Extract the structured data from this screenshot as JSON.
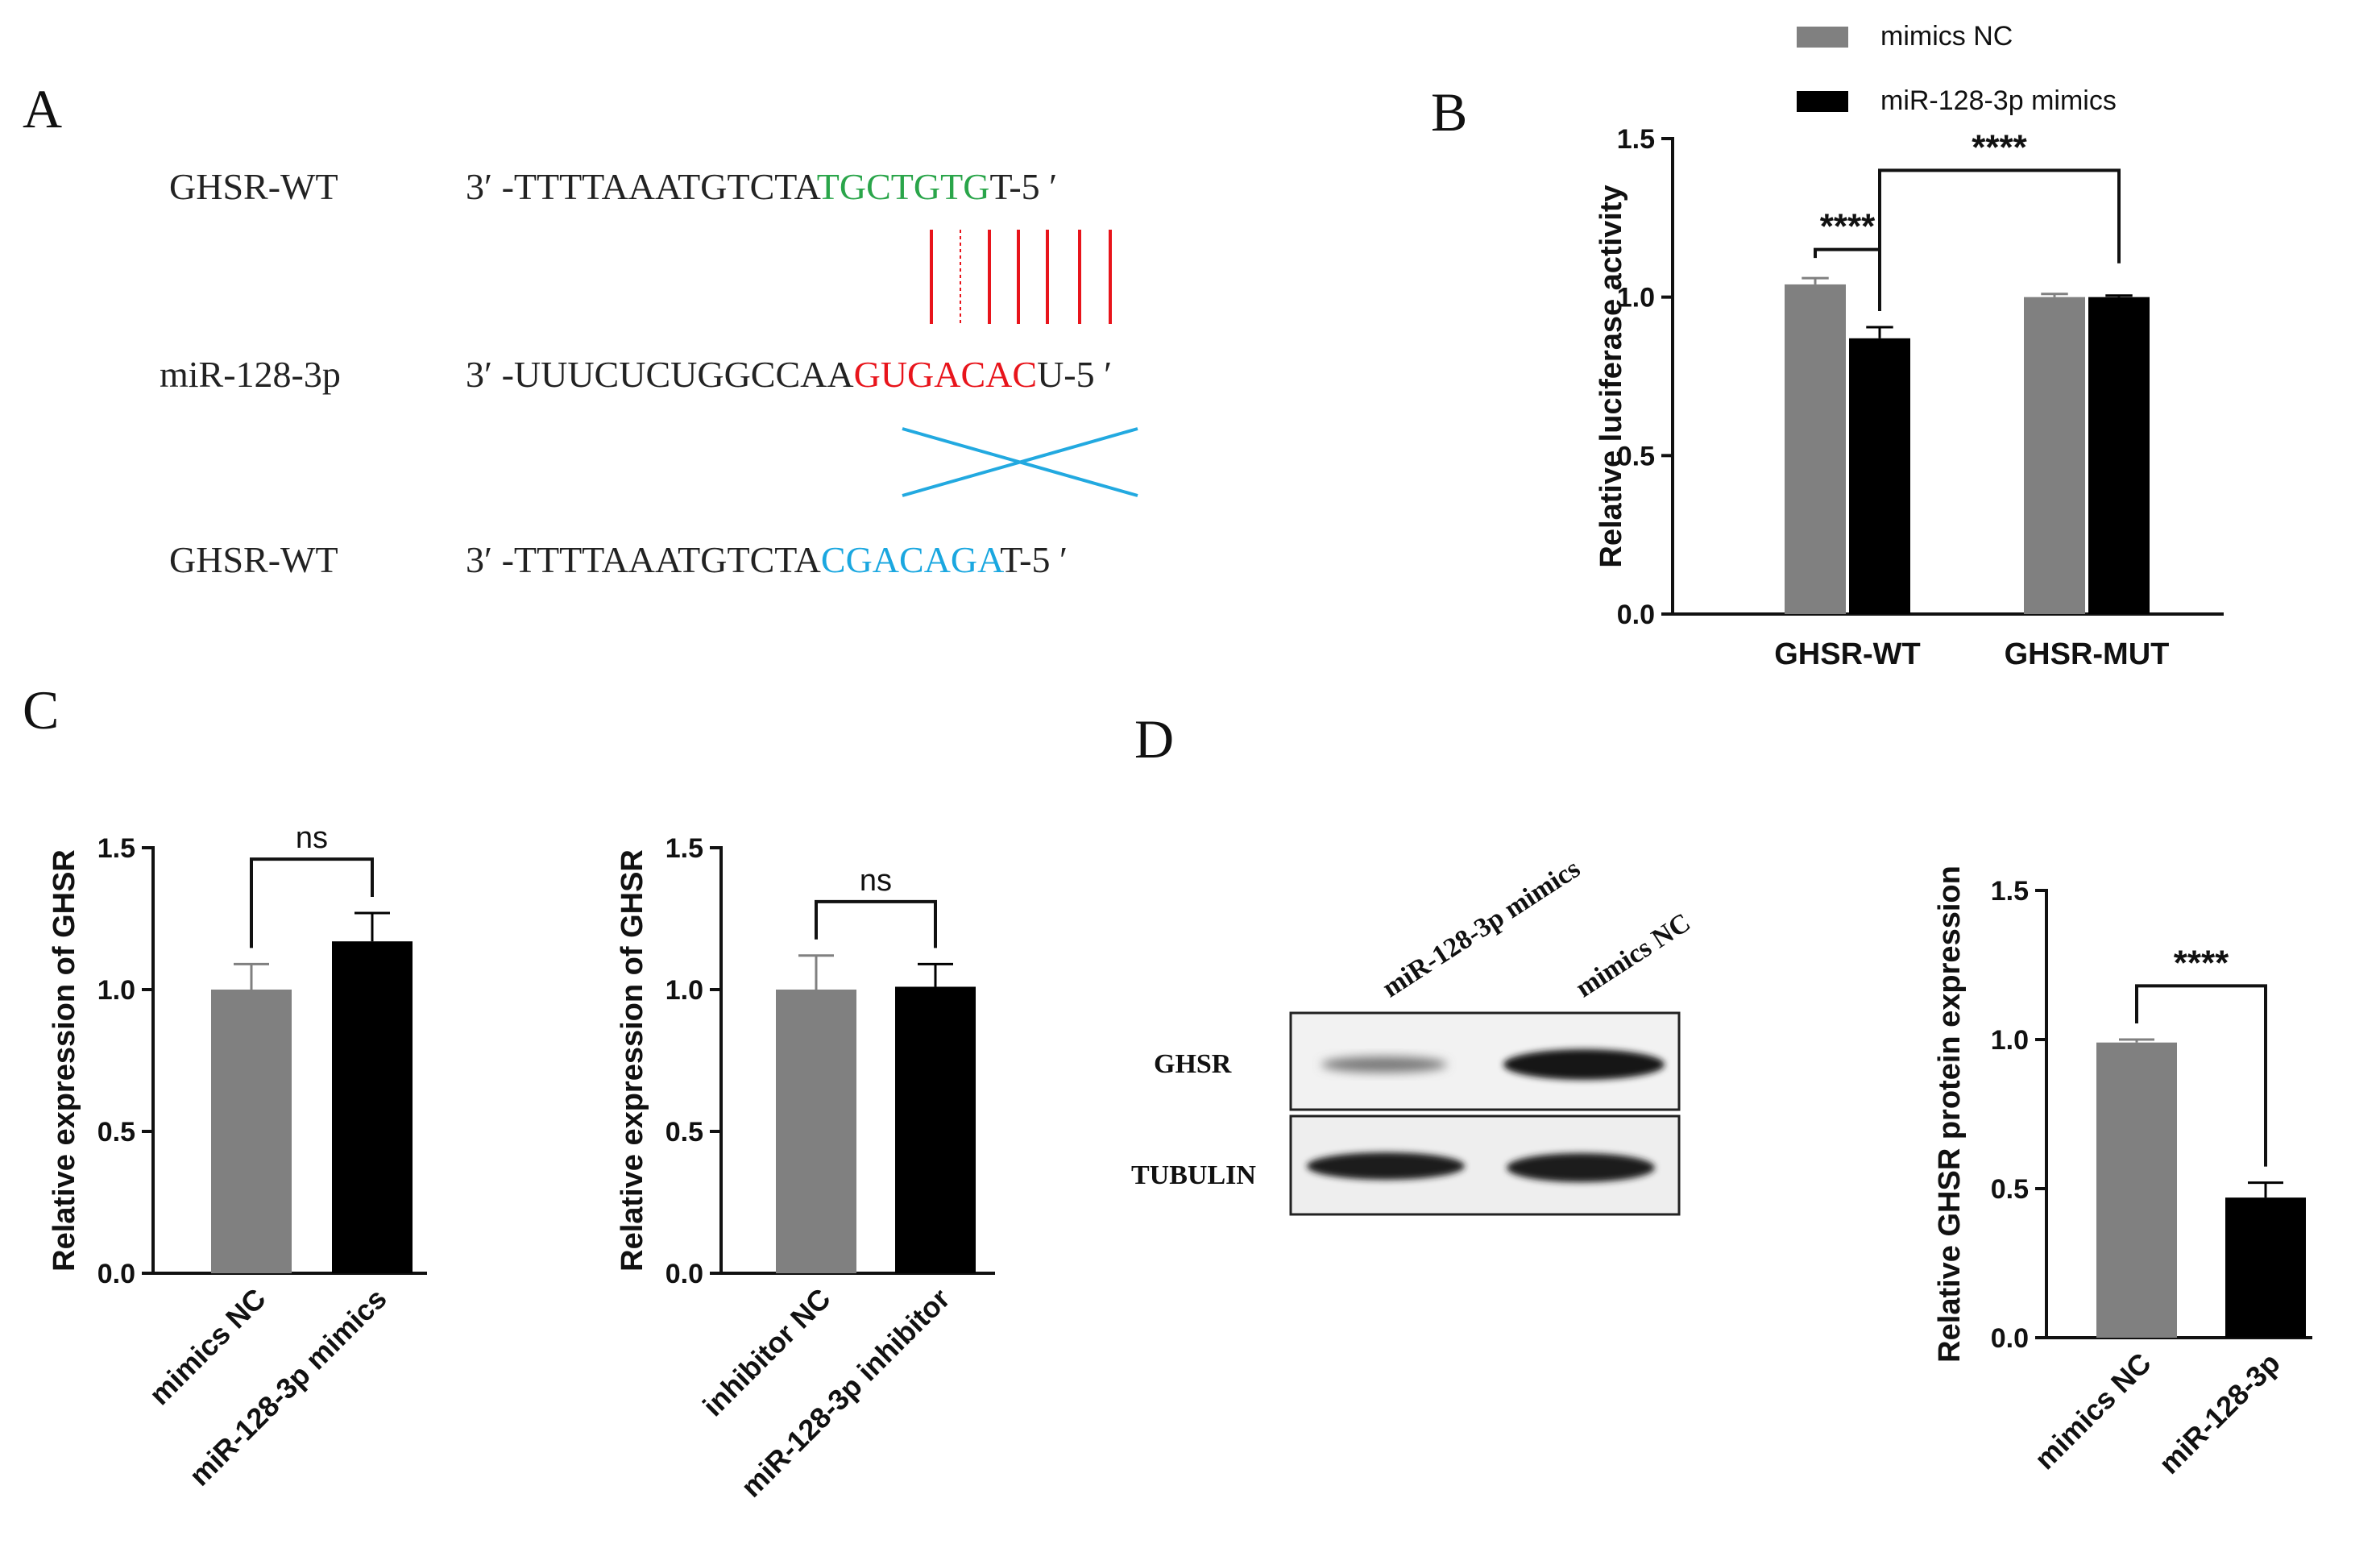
{
  "panels": {
    "a": "A",
    "b": "B",
    "c": "C",
    "d": "D"
  },
  "panelA": {
    "rows": [
      {
        "label": "GHSR-WT",
        "prefix": "3′ -TTTTAAATGTCTA",
        "highlight": "TGCTGTG",
        "suffix": "T-5 ′",
        "color": "#2aa54a"
      },
      {
        "label": "miR-128-3p",
        "prefix": "3′ -UUUCUCUGGCCAA",
        "highlight": "GUGACAC",
        "suffix": "U-5 ′",
        "color": "#e8141b"
      },
      {
        "label": "GHSR-WT",
        "prefix": "3′ -TTTTAAATGTCTA",
        "highlight": "CGACAGA",
        "suffix": "T-5 ′",
        "color": "#1aa7e0"
      }
    ],
    "pair_color": "#e8141b",
    "cross_color": "#22a9e0"
  },
  "legend": {
    "items": [
      {
        "label": "mimics NC",
        "color": "#808080"
      },
      {
        "label": "miR-128-3p mimics",
        "color": "#000000"
      }
    ]
  },
  "westernBlot": {
    "lanes": [
      "miR-128-3p mimics",
      "mimics NC"
    ],
    "rows": [
      "GHSR",
      "TUBULIN"
    ]
  },
  "chart_data": [
    {
      "id": "B",
      "type": "bar",
      "categories": [
        "GHSR-WT",
        "GHSR-MUT"
      ],
      "series": [
        {
          "name": "mimics NC",
          "color": "#808080",
          "values": [
            1.04,
            1.0
          ],
          "errors": [
            0.02,
            0.01
          ]
        },
        {
          "name": "miR-128-3p mimics",
          "color": "#000000",
          "values": [
            0.87,
            1.0
          ],
          "errors": [
            0.035,
            0.005
          ]
        }
      ],
      "xlabel": "",
      "ylabel": "Relative luciferase activity",
      "ylim": [
        0,
        1.5
      ],
      "yticks": [
        "0.0",
        "0.5",
        "1.0",
        "1.5"
      ],
      "significance": [
        {
          "from": [
            0,
            0
          ],
          "to": [
            0,
            1
          ],
          "label": "****"
        },
        {
          "from": [
            0,
            1
          ],
          "to": [
            1,
            1
          ],
          "label": "****"
        }
      ]
    },
    {
      "id": "C1",
      "type": "bar",
      "categories": [
        "mimics NC",
        "miR-128-3p mimics"
      ],
      "colors": [
        "#808080",
        "#000000"
      ],
      "values": [
        1.0,
        1.17
      ],
      "errors": [
        0.09,
        0.1
      ],
      "ylabel": "Relative expression of GHSR",
      "ylim": [
        0,
        1.5
      ],
      "yticks": [
        "0.0",
        "0.5",
        "1.0",
        "1.5"
      ],
      "significance": [
        {
          "from": 0,
          "to": 1,
          "label": "ns"
        }
      ]
    },
    {
      "id": "C2",
      "type": "bar",
      "categories": [
        "inhibitor NC",
        "miR-128-3p inhibitor"
      ],
      "colors": [
        "#808080",
        "#000000"
      ],
      "values": [
        1.0,
        1.01
      ],
      "errors": [
        0.12,
        0.08
      ],
      "ylabel": "Relative expression of GHSR",
      "ylim": [
        0,
        1.5
      ],
      "yticks": [
        "0.0",
        "0.5",
        "1.0",
        "1.5"
      ],
      "significance": [
        {
          "from": 0,
          "to": 1,
          "label": "ns"
        }
      ]
    },
    {
      "id": "D",
      "type": "bar",
      "categories": [
        "mimics NC",
        "miR-128-3p"
      ],
      "colors": [
        "#808080",
        "#000000"
      ],
      "values": [
        0.99,
        0.47
      ],
      "errors": [
        0.01,
        0.05
      ],
      "ylabel": "Relative GHSR protein expression",
      "ylim": [
        0,
        1.5
      ],
      "yticks": [
        "0.0",
        "0.5",
        "1.0",
        "1.5"
      ],
      "significance": [
        {
          "from": 0,
          "to": 1,
          "label": "****"
        }
      ]
    }
  ]
}
